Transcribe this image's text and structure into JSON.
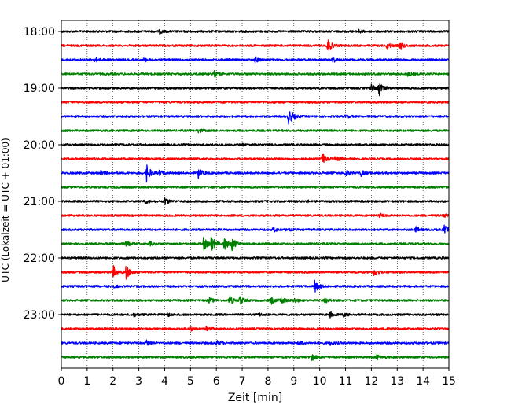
{
  "chart_data": {
    "type": "line",
    "title": "",
    "xlabel": "Zeit  [min]",
    "ylabel": "UTC (Lokalzeit = UTC + 01:00)",
    "xlim": [
      0,
      15
    ],
    "x_ticks": [
      "0",
      "1",
      "2",
      "3",
      "4",
      "5",
      "6",
      "7",
      "8",
      "9",
      "10",
      "11",
      "12",
      "13",
      "14",
      "15"
    ],
    "y_ticks": [
      "18:00",
      "19:00",
      "20:00",
      "21:00",
      "22:00",
      "23:00"
    ],
    "grid": "vertical dotted lines at each minute",
    "colors": [
      "#000000",
      "#ff0000",
      "#0000ff",
      "#008000"
    ],
    "trace_interval_min": 15,
    "traces": [
      {
        "start": "18:00",
        "color": "#000000",
        "events": [
          {
            "t": 3.8,
            "amp": 0.2
          },
          {
            "t": 11.5,
            "amp": 0.2
          }
        ]
      },
      {
        "start": "18:15",
        "color": "#ff0000",
        "events": [
          {
            "t": 10.3,
            "amp": 0.8
          },
          {
            "t": 12.6,
            "amp": 0.35
          },
          {
            "t": 13.1,
            "amp": 0.45
          }
        ]
      },
      {
        "start": "18:30",
        "color": "#0000ff",
        "events": [
          {
            "t": 1.3,
            "amp": 0.25
          },
          {
            "t": 3.2,
            "amp": 0.2
          },
          {
            "t": 7.5,
            "amp": 0.3
          },
          {
            "t": 10.5,
            "amp": 0.3
          }
        ]
      },
      {
        "start": "18:45",
        "color": "#008000",
        "events": [
          {
            "t": 5.9,
            "amp": 0.35
          },
          {
            "t": 13.4,
            "amp": 0.2
          }
        ]
      },
      {
        "start": "19:00",
        "color": "#000000",
        "events": [
          {
            "t": 12.0,
            "amp": 0.35
          },
          {
            "t": 12.3,
            "amp": 0.9
          }
        ]
      },
      {
        "start": "19:15",
        "color": "#ff0000",
        "events": []
      },
      {
        "start": "19:30",
        "color": "#0000ff",
        "events": [
          {
            "t": 8.8,
            "amp": 1.0
          },
          {
            "t": 11.0,
            "amp": 0.15
          }
        ]
      },
      {
        "start": "19:45",
        "color": "#008000",
        "events": [
          {
            "t": 5.3,
            "amp": 0.2
          }
        ]
      },
      {
        "start": "20:00",
        "color": "#000000",
        "events": [
          {
            "t": 7.0,
            "amp": 0.1
          }
        ]
      },
      {
        "start": "20:15",
        "color": "#ff0000",
        "events": [
          {
            "t": 10.1,
            "amp": 0.65
          },
          {
            "t": 10.6,
            "amp": 0.3
          }
        ]
      },
      {
        "start": "20:30",
        "color": "#0000ff",
        "events": [
          {
            "t": 1.5,
            "amp": 0.25
          },
          {
            "t": 3.3,
            "amp": 1.0
          },
          {
            "t": 3.8,
            "amp": 0.3
          },
          {
            "t": 5.3,
            "amp": 0.55
          },
          {
            "t": 11.0,
            "amp": 0.4
          },
          {
            "t": 11.6,
            "amp": 0.35
          }
        ]
      },
      {
        "start": "20:45",
        "color": "#008000",
        "events": []
      },
      {
        "start": "21:00",
        "color": "#000000",
        "events": [
          {
            "t": 3.2,
            "amp": 0.3
          },
          {
            "t": 4.0,
            "amp": 0.4
          },
          {
            "t": 9.5,
            "amp": 0.1
          }
        ]
      },
      {
        "start": "21:15",
        "color": "#ff0000",
        "events": [
          {
            "t": 12.3,
            "amp": 0.25
          },
          {
            "t": 14.8,
            "amp": 0.2
          }
        ]
      },
      {
        "start": "21:30",
        "color": "#0000ff",
        "events": [
          {
            "t": 8.2,
            "amp": 0.3
          },
          {
            "t": 8.7,
            "amp": 0.2
          },
          {
            "t": 13.7,
            "amp": 0.35
          },
          {
            "t": 14.8,
            "amp": 0.5
          }
        ]
      },
      {
        "start": "21:45",
        "color": "#008000",
        "events": [
          {
            "t": 2.5,
            "amp": 0.3
          },
          {
            "t": 3.4,
            "amp": 0.25
          },
          {
            "t": 5.5,
            "amp": 0.8
          },
          {
            "t": 5.8,
            "amp": 0.9
          },
          {
            "t": 6.3,
            "amp": 0.8
          },
          {
            "t": 6.6,
            "amp": 0.7
          }
        ]
      },
      {
        "start": "22:00",
        "color": "#000000",
        "events": []
      },
      {
        "start": "22:15",
        "color": "#ff0000",
        "events": [
          {
            "t": 2.0,
            "amp": 0.75
          },
          {
            "t": 2.5,
            "amp": 0.8
          },
          {
            "t": 12.1,
            "amp": 0.45
          }
        ]
      },
      {
        "start": "22:30",
        "color": "#0000ff",
        "events": [
          {
            "t": 9.8,
            "amp": 0.8
          },
          {
            "t": 2.0,
            "amp": 0.15
          }
        ]
      },
      {
        "start": "22:45",
        "color": "#008000",
        "events": [
          {
            "t": 5.7,
            "amp": 0.35
          },
          {
            "t": 6.5,
            "amp": 0.55
          },
          {
            "t": 6.9,
            "amp": 0.5
          },
          {
            "t": 8.1,
            "amp": 0.45
          },
          {
            "t": 8.5,
            "amp": 0.4
          },
          {
            "t": 9.0,
            "amp": 0.3
          },
          {
            "t": 10.2,
            "amp": 0.25
          }
        ]
      },
      {
        "start": "23:00",
        "color": "#000000",
        "events": [
          {
            "t": 2.8,
            "amp": 0.2
          },
          {
            "t": 4.1,
            "amp": 0.2
          },
          {
            "t": 7.6,
            "amp": 0.2
          },
          {
            "t": 10.4,
            "amp": 0.3
          },
          {
            "t": 10.9,
            "amp": 0.2
          }
        ]
      },
      {
        "start": "23:15",
        "color": "#ff0000",
        "events": [
          {
            "t": 5.0,
            "amp": 0.25
          },
          {
            "t": 5.6,
            "amp": 0.2
          },
          {
            "t": 12.6,
            "amp": 0.3
          }
        ]
      },
      {
        "start": "23:30",
        "color": "#0000ff",
        "events": [
          {
            "t": 3.3,
            "amp": 0.35
          },
          {
            "t": 6.0,
            "amp": 0.25
          },
          {
            "t": 9.2,
            "amp": 0.3
          },
          {
            "t": 10.4,
            "amp": 0.2
          }
        ]
      },
      {
        "start": "23:45",
        "color": "#008000",
        "events": [
          {
            "t": 9.7,
            "amp": 0.5
          },
          {
            "t": 12.2,
            "amp": 0.3
          }
        ]
      }
    ]
  }
}
